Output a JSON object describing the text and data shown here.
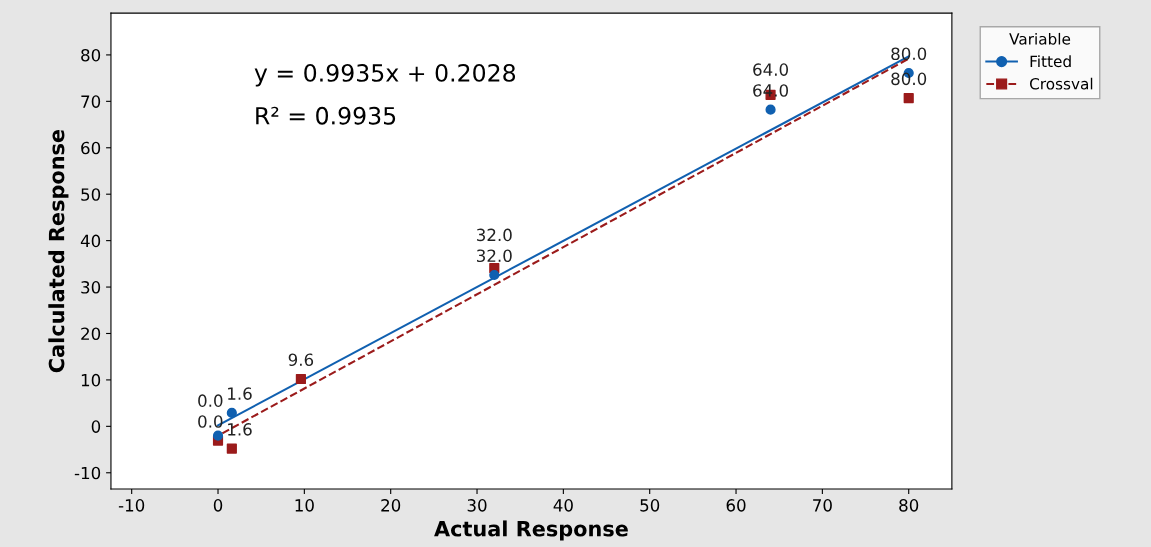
{
  "chart_data": {
    "type": "scatter",
    "xlabel": "Actual Response",
    "ylabel": "Calculated Response",
    "legend_title": "Variable",
    "annotations": [
      "y = 0.9935x + 0.2028",
      "R² = 0.9935",
      {
        "text": "0.0",
        "x": 0,
        "y": -2.0
      },
      {
        "text": "1.6",
        "x": 1.6,
        "y": 2.9
      },
      {
        "text": "32.0",
        "x": 32,
        "y": 32.6
      },
      {
        "text": "64.0",
        "x": 64,
        "y": 68.2
      },
      {
        "text": "80.0",
        "x": 80,
        "y": 76.1
      },
      {
        "text": "0.0",
        "x": 0,
        "y": -3.1
      },
      {
        "text": "1.6",
        "x": 1.6,
        "y": -4.8
      },
      {
        "text": "9.6",
        "x": 9.6,
        "y": 10.2
      },
      {
        "text": "32.0",
        "x": 32,
        "y": 34.1
      },
      {
        "text": "64.0",
        "x": 64,
        "y": 71.4
      },
      {
        "text": "80.0",
        "x": 80,
        "y": 70.7
      }
    ],
    "xlim": [
      -12.4,
      85
    ],
    "ylim": [
      -13.5,
      89
    ],
    "xticks": [
      -10,
      0,
      10,
      20,
      30,
      40,
      50,
      60,
      70,
      80
    ],
    "yticks": [
      -10,
      0,
      10,
      20,
      30,
      40,
      50,
      60,
      70,
      80
    ],
    "grid": false,
    "legend": "top right",
    "series": [
      {
        "name": "Fitted",
        "color": "#1060b0",
        "marker": "circle",
        "x": [
          0,
          1.6,
          32,
          64,
          80
        ],
        "values": [
          -2.0,
          2.9,
          32.6,
          68.2,
          76.1
        ]
      },
      {
        "type": "line",
        "color": "#1060b0",
        "line_style": "solid",
        "x": [
          0,
          80
        ],
        "values": [
          0.2,
          79.7
        ]
      },
      {
        "name": "Crossval",
        "color": "#9b1b1b",
        "marker": "square",
        "x": [
          0,
          1.6,
          9.6,
          32,
          64,
          80
        ],
        "values": [
          -3.1,
          -4.8,
          10.2,
          34.1,
          71.4,
          70.7
        ]
      },
      {
        "type": "line",
        "color": "#9b1b1b",
        "line_style": "dashed",
        "x": [
          0.5,
          80
        ],
        "values": [
          -1.5,
          79.2
        ]
      }
    ]
  }
}
